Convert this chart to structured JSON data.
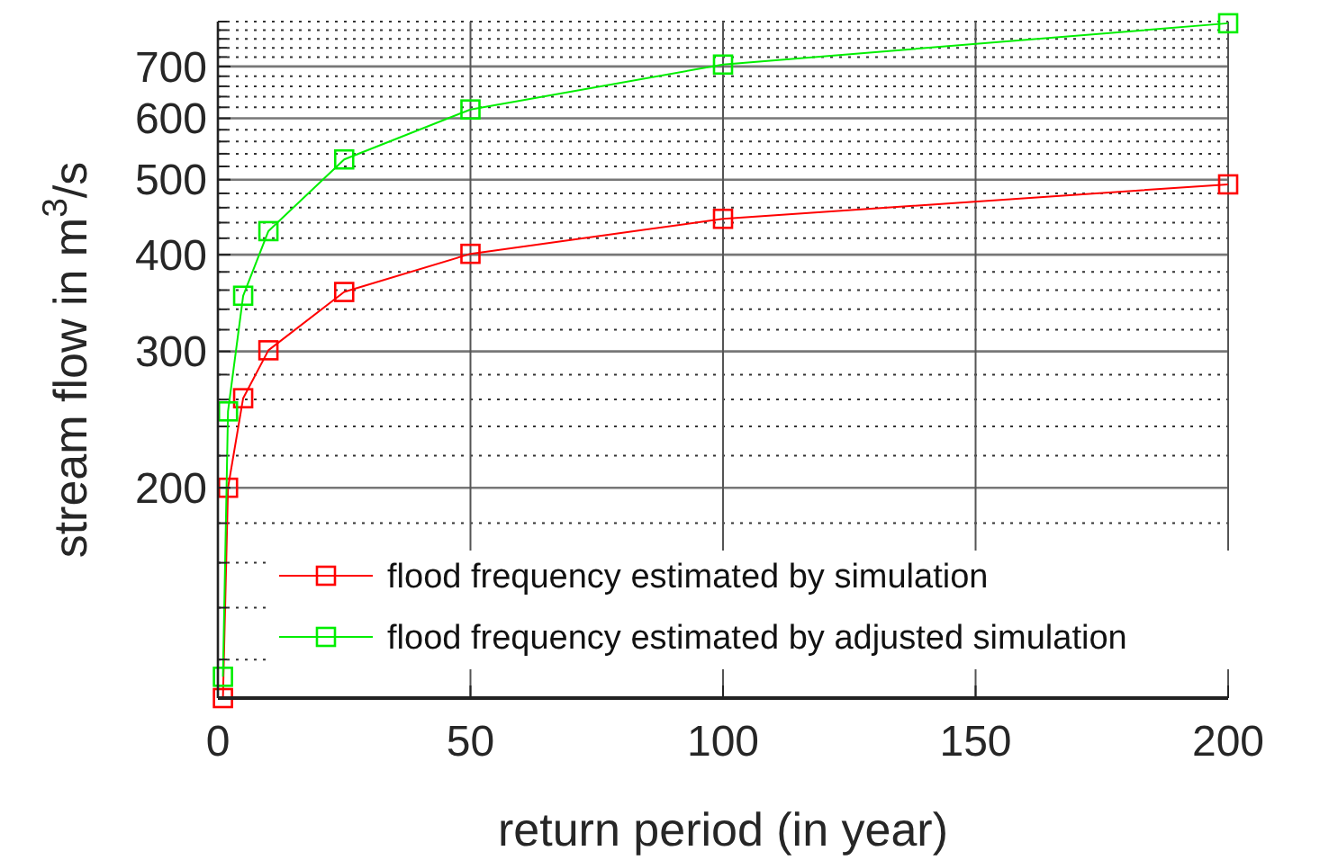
{
  "chart_data": {
    "type": "line",
    "xlabel": "return period (in year)",
    "ylabel": "stream flow in m$^{3}$/s",
    "log": "y",
    "grid": true,
    "legend": "bottom right",
    "marker": "square",
    "line_style": "solid",
    "x": [
      1,
      2,
      5,
      10,
      25,
      50,
      100,
      200
    ],
    "xlim": [
      0,
      200
    ],
    "xticks": [
      0,
      50,
      100,
      150,
      200
    ],
    "ylim": [
      107,
      800
    ],
    "yticks": [
      200,
      300,
      400,
      500,
      600,
      700
    ],
    "series": [
      {
        "name": "flood frequency estimated by simulation",
        "color": "#ff0000",
        "values": [
          107,
          200,
          261,
          301,
          358,
          401,
          445,
          493
        ]
      },
      {
        "name": "flood frequency estimated by adjusted simulation",
        "color": "#00ee00",
        "values": [
          114,
          251,
          354,
          429,
          531,
          616,
          704,
          796
        ]
      }
    ]
  }
}
